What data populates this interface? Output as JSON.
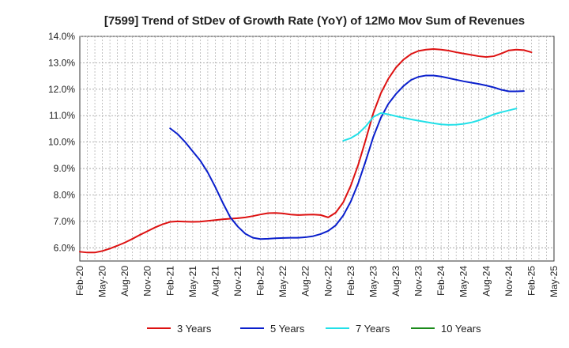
{
  "chart_data": {
    "type": "line",
    "title": "[7599]  Trend of StDev of Growth Rate (YoY) of 12Mo Mov Sum of Revenues",
    "xlabel": "",
    "ylabel": "",
    "ylim": [
      5.5,
      14.0
    ],
    "y_ticks": [
      6.0,
      7.0,
      8.0,
      9.0,
      10.0,
      11.0,
      12.0,
      13.0,
      14.0
    ],
    "y_tick_labels": [
      "6.0%",
      "7.0%",
      "8.0%",
      "9.0%",
      "10.0%",
      "11.0%",
      "12.0%",
      "13.0%",
      "14.0%"
    ],
    "x_tick_labels": [
      "Feb-20",
      "May-20",
      "Aug-20",
      "Nov-20",
      "Feb-21",
      "May-21",
      "Aug-21",
      "Nov-21",
      "Feb-22",
      "May-22",
      "Aug-22",
      "Nov-22",
      "Feb-23",
      "May-23",
      "Aug-23",
      "Nov-23",
      "Feb-24",
      "May-24",
      "Aug-24",
      "Nov-24",
      "Feb-25",
      "May-25"
    ],
    "grid": true,
    "legend_position": "bottom",
    "series": [
      {
        "name": "3 Years",
        "color": "#dd1111",
        "points": [
          [
            0,
            5.85
          ],
          [
            1,
            5.82
          ],
          [
            2,
            5.82
          ],
          [
            3,
            5.88
          ],
          [
            4,
            5.97
          ],
          [
            5,
            6.08
          ],
          [
            6,
            6.2
          ],
          [
            7,
            6.34
          ],
          [
            8,
            6.49
          ],
          [
            9,
            6.63
          ],
          [
            10,
            6.77
          ],
          [
            11,
            6.89
          ],
          [
            12,
            6.98
          ],
          [
            13,
            7.0
          ],
          [
            14,
            6.99
          ],
          [
            15,
            6.98
          ],
          [
            16,
            6.99
          ],
          [
            17,
            7.02
          ],
          [
            18,
            7.05
          ],
          [
            19,
            7.08
          ],
          [
            20,
            7.1
          ],
          [
            21,
            7.12
          ],
          [
            22,
            7.15
          ],
          [
            23,
            7.2
          ],
          [
            24,
            7.26
          ],
          [
            25,
            7.31
          ],
          [
            26,
            7.32
          ],
          [
            27,
            7.3
          ],
          [
            28,
            7.26
          ],
          [
            29,
            7.24
          ],
          [
            30,
            7.25
          ],
          [
            31,
            7.26
          ],
          [
            32,
            7.24
          ],
          [
            33,
            7.15
          ],
          [
            34,
            7.33
          ],
          [
            35,
            7.72
          ],
          [
            36,
            8.35
          ],
          [
            37,
            9.15
          ],
          [
            38,
            10.1
          ],
          [
            39,
            11.1
          ],
          [
            40,
            11.85
          ],
          [
            41,
            12.4
          ],
          [
            42,
            12.82
          ],
          [
            43,
            13.12
          ],
          [
            44,
            13.33
          ],
          [
            45,
            13.45
          ],
          [
            46,
            13.5
          ],
          [
            47,
            13.52
          ],
          [
            48,
            13.5
          ],
          [
            49,
            13.46
          ],
          [
            50,
            13.4
          ],
          [
            51,
            13.35
          ],
          [
            52,
            13.3
          ],
          [
            53,
            13.25
          ],
          [
            54,
            13.22
          ],
          [
            55,
            13.25
          ],
          [
            56,
            13.35
          ],
          [
            57,
            13.47
          ],
          [
            58,
            13.5
          ],
          [
            59,
            13.48
          ],
          [
            60,
            13.4
          ]
        ]
      },
      {
        "name": "5 Years",
        "color": "#0a1fcc",
        "points": [
          [
            12,
            10.52
          ],
          [
            13,
            10.3
          ],
          [
            14,
            10.0
          ],
          [
            15,
            9.65
          ],
          [
            16,
            9.3
          ],
          [
            17,
            8.85
          ],
          [
            18,
            8.3
          ],
          [
            19,
            7.7
          ],
          [
            20,
            7.15
          ],
          [
            21,
            6.8
          ],
          [
            22,
            6.53
          ],
          [
            23,
            6.38
          ],
          [
            24,
            6.33
          ],
          [
            25,
            6.34
          ],
          [
            26,
            6.36
          ],
          [
            27,
            6.37
          ],
          [
            28,
            6.38
          ],
          [
            29,
            6.38
          ],
          [
            30,
            6.4
          ],
          [
            31,
            6.44
          ],
          [
            32,
            6.52
          ],
          [
            33,
            6.64
          ],
          [
            34,
            6.85
          ],
          [
            35,
            7.22
          ],
          [
            36,
            7.75
          ],
          [
            37,
            8.45
          ],
          [
            38,
            9.3
          ],
          [
            39,
            10.2
          ],
          [
            40,
            10.92
          ],
          [
            41,
            11.45
          ],
          [
            42,
            11.82
          ],
          [
            43,
            12.12
          ],
          [
            44,
            12.35
          ],
          [
            45,
            12.47
          ],
          [
            46,
            12.52
          ],
          [
            47,
            12.52
          ],
          [
            48,
            12.48
          ],
          [
            49,
            12.42
          ],
          [
            50,
            12.36
          ],
          [
            51,
            12.3
          ],
          [
            52,
            12.25
          ],
          [
            53,
            12.2
          ],
          [
            54,
            12.14
          ],
          [
            55,
            12.07
          ],
          [
            56,
            11.98
          ],
          [
            57,
            11.92
          ],
          [
            58,
            11.92
          ],
          [
            59,
            11.93
          ]
        ]
      },
      {
        "name": "7 Years",
        "color": "#22e0e8",
        "points": [
          [
            35,
            10.05
          ],
          [
            36,
            10.15
          ],
          [
            37,
            10.32
          ],
          [
            38,
            10.6
          ],
          [
            39,
            10.95
          ],
          [
            40,
            11.1
          ],
          [
            41,
            11.05
          ],
          [
            42,
            10.98
          ],
          [
            43,
            10.92
          ],
          [
            44,
            10.86
          ],
          [
            45,
            10.81
          ],
          [
            46,
            10.76
          ],
          [
            47,
            10.71
          ],
          [
            48,
            10.67
          ],
          [
            49,
            10.65
          ],
          [
            50,
            10.66
          ],
          [
            51,
            10.69
          ],
          [
            52,
            10.74
          ],
          [
            53,
            10.82
          ],
          [
            54,
            10.93
          ],
          [
            55,
            11.05
          ],
          [
            56,
            11.13
          ],
          [
            57,
            11.2
          ],
          [
            58,
            11.27
          ]
        ]
      },
      {
        "name": "10 Years",
        "color": "#1a8a1a",
        "points": []
      }
    ]
  }
}
